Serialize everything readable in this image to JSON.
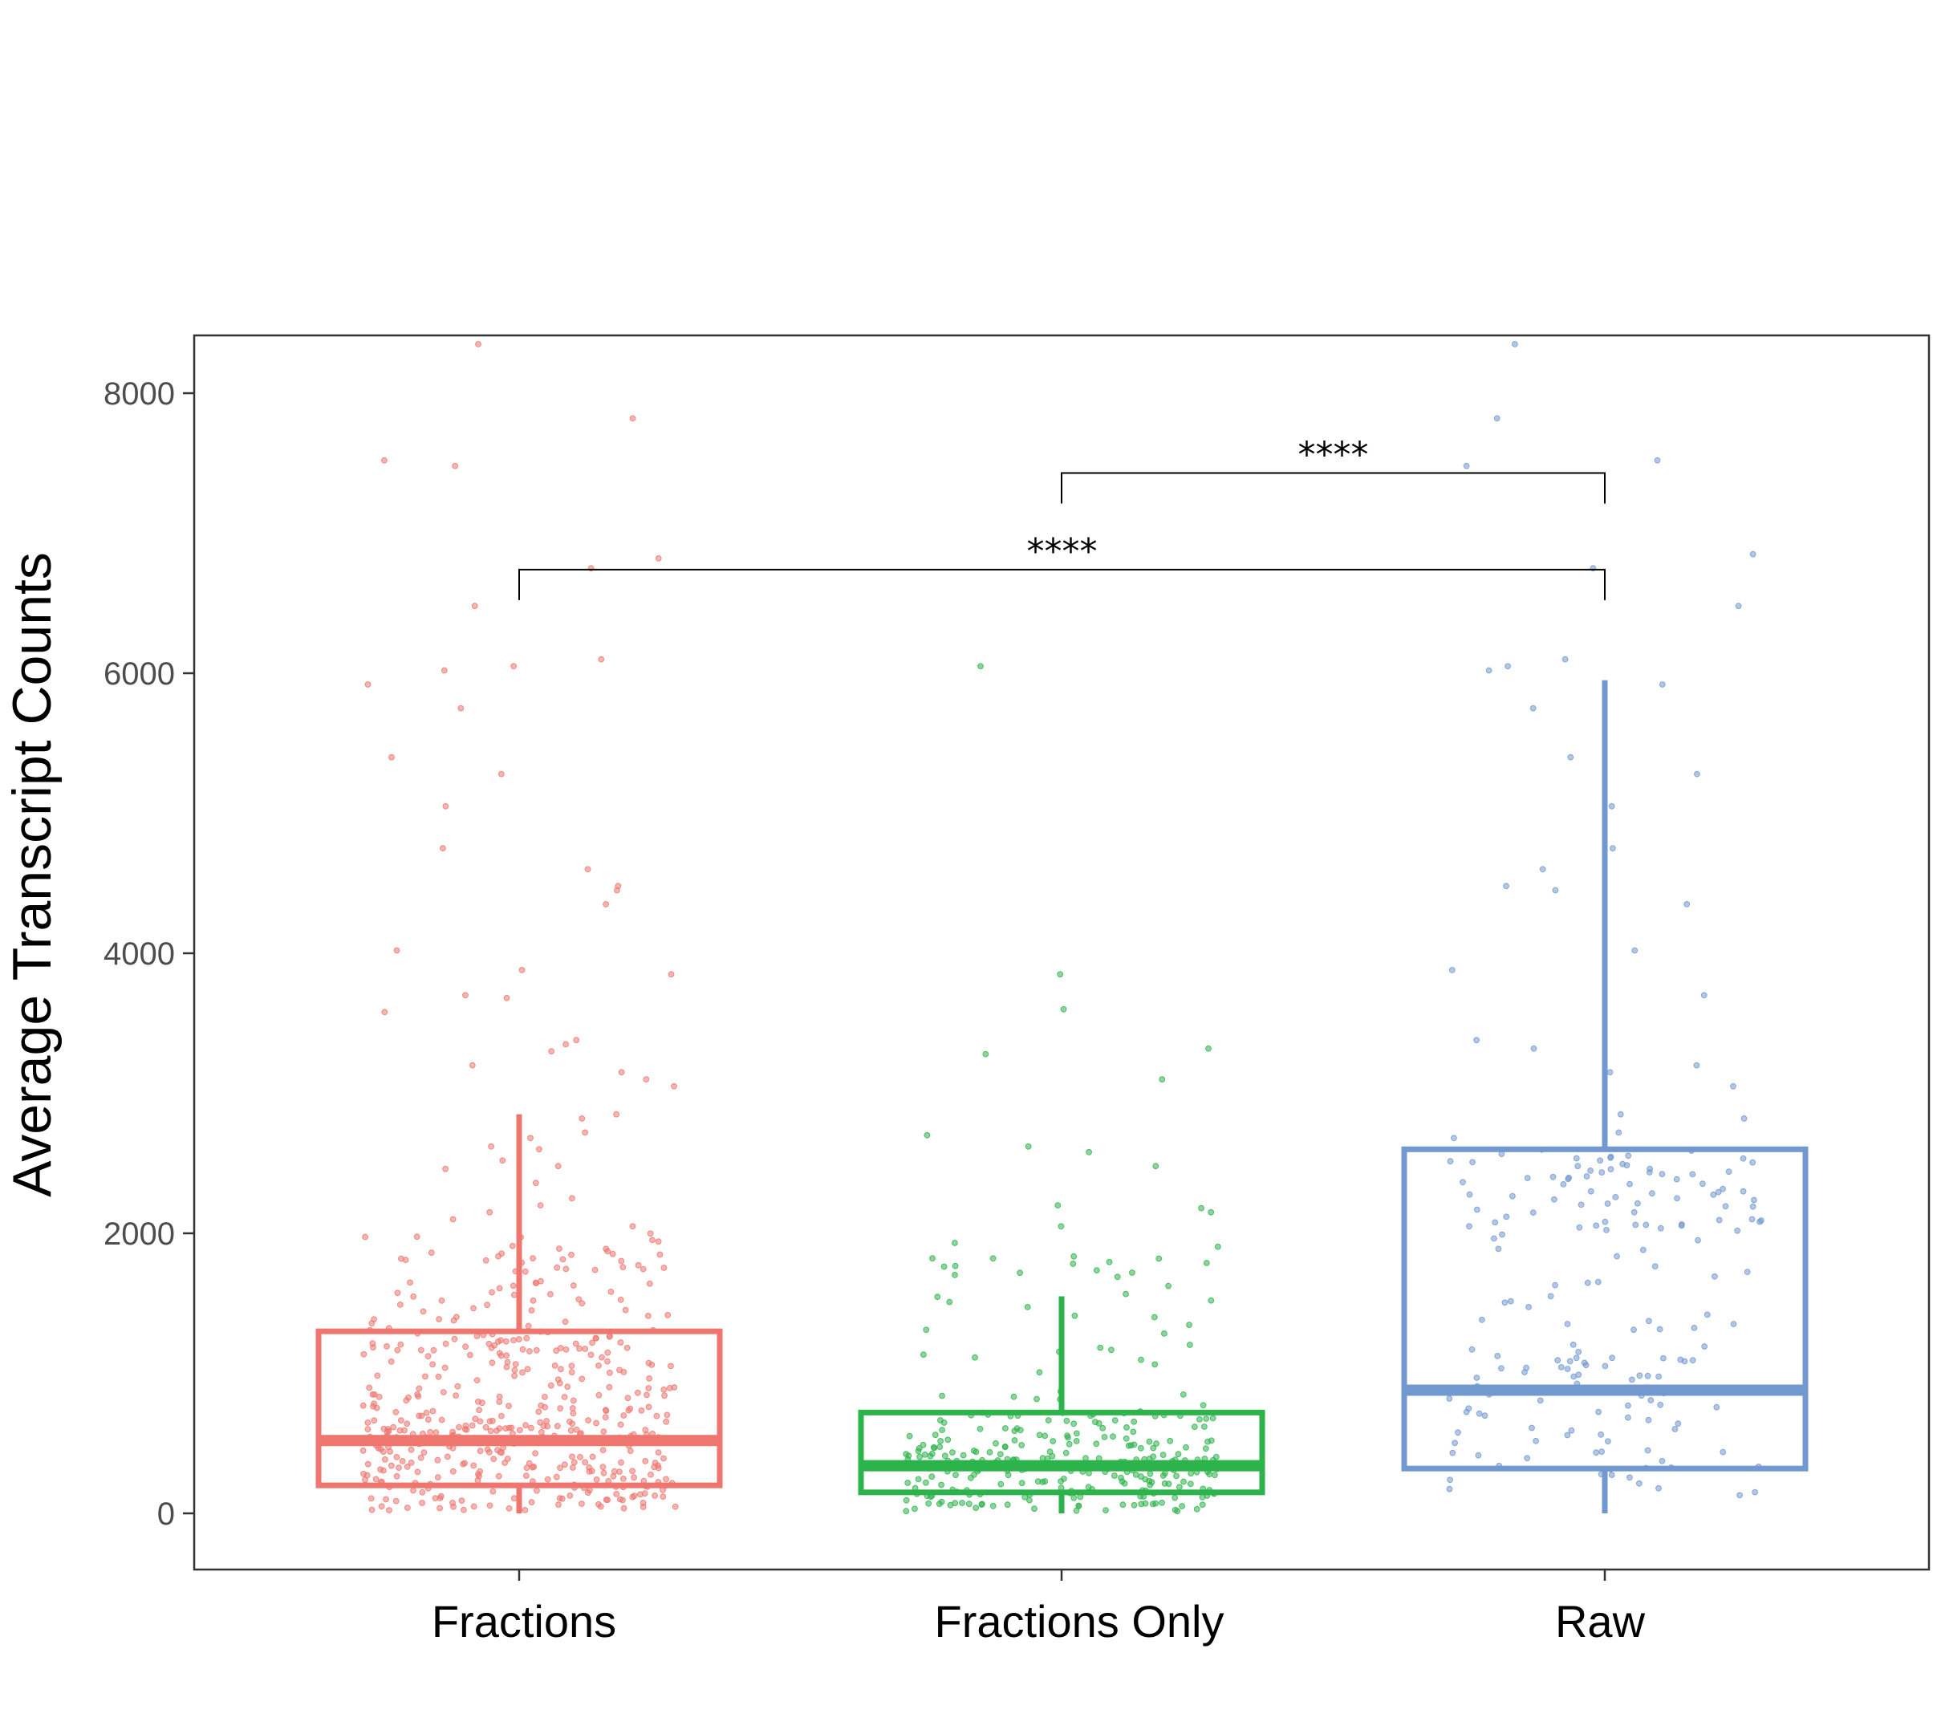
{
  "chart_data": {
    "type": "boxplot",
    "title": "",
    "xlabel": "",
    "ylabel": "Average Transcript Counts",
    "ylim": [
      -400,
      8400
    ],
    "yticks": [
      0,
      2000,
      4000,
      6000,
      8000
    ],
    "yticklabels": [
      "0",
      "2000",
      "4000",
      "6000",
      "8000"
    ],
    "grid": false,
    "legend": "none",
    "categories": [
      "Fractions",
      "Fractions Only",
      "Raw"
    ],
    "colors": [
      "#ee766f",
      "#2db34b",
      "#7298d0"
    ],
    "boxes": [
      {
        "category": "Fractions",
        "whisker_low": 0,
        "q1": 200,
        "median": 520,
        "q3": 1300,
        "whisker_high": 2850
      },
      {
        "category": "Fractions Only",
        "whisker_low": 0,
        "q1": 150,
        "median": 340,
        "q3": 720,
        "whisker_high": 1550
      },
      {
        "category": "Raw",
        "whisker_low": 0,
        "q1": 320,
        "median": 880,
        "q3": 2600,
        "whisker_high": 5950
      }
    ],
    "points": [
      {
        "category": "Fractions",
        "n": 520,
        "values_above_2000": [
          8350,
          7820,
          7520,
          7480,
          6820,
          6750,
          6480,
          6100,
          6050,
          6020,
          5920,
          5750,
          5400,
          5280,
          5050,
          4750,
          4600,
          4480,
          4450,
          4350,
          4020,
          3880,
          3850,
          3700,
          3680,
          3580,
          3380,
          3350,
          3300,
          3200,
          3150,
          3100,
          3050,
          2850,
          2820,
          2720,
          2680,
          2620,
          2600,
          2520,
          2480,
          2460,
          2360,
          2250,
          2200,
          2150,
          2100,
          2050
        ]
      },
      {
        "category": "Fractions Only",
        "n": 330,
        "values_above_2000": [
          6050,
          3850,
          3600,
          3320,
          3280,
          3100,
          2700,
          2620,
          2580,
          2480,
          2200,
          2180,
          2150,
          2050
        ]
      },
      {
        "category": "Raw",
        "n": 210,
        "values_above_2000": [
          8350,
          7820,
          7520,
          7480,
          6850,
          6750,
          6480,
          6100,
          6050,
          6020,
          5920,
          5750,
          5400,
          5280,
          5050,
          4750,
          4600,
          4480,
          4450,
          4350,
          4020,
          3880,
          3700,
          3380,
          3320,
          3200,
          3150,
          3050,
          2850,
          2820,
          2720,
          2680,
          2520,
          2480,
          2460,
          2350,
          2300,
          2250,
          2150,
          2100
        ]
      }
    ],
    "significance": [
      {
        "from": "Fractions Only",
        "to": "Raw",
        "label": "****",
        "y": 7430
      },
      {
        "from": "Fractions",
        "to": "Raw",
        "label": "****",
        "y": 6740
      }
    ]
  }
}
